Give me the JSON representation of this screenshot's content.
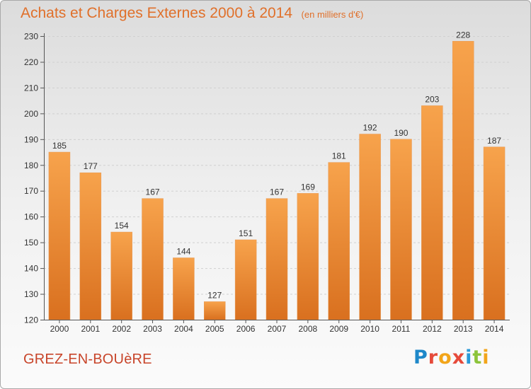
{
  "header": {
    "title": "Achats et Charges Externes 2000 à 2014",
    "unit": "(en milliers d'€)"
  },
  "footer": {
    "commune": "GREZ-EN-BOUèRE",
    "logo": "Proxiti"
  },
  "colors": {
    "bar_light": "#f7a34c",
    "bar_dark": "#d9701f",
    "title": "#e0702a",
    "commune": "#c8452a",
    "logo": [
      "#1e88c9",
      "#e64a3a",
      "#f2a51a",
      "#e64a3a",
      "#2a9ad8",
      "#8cc43b",
      "#f2a51a"
    ]
  },
  "chart_data": {
    "type": "bar",
    "title": "Achats et Charges Externes 2000 à 2014",
    "categories": [
      "2000",
      "2001",
      "2002",
      "2003",
      "2004",
      "2005",
      "2006",
      "2007",
      "2008",
      "2009",
      "2010",
      "2011",
      "2012",
      "2013",
      "2014"
    ],
    "values": [
      185,
      177,
      154,
      167,
      144,
      127,
      151,
      167,
      169,
      181,
      192,
      190,
      203,
      228,
      187
    ],
    "yticks": [
      120,
      130,
      140,
      150,
      160,
      170,
      180,
      190,
      200,
      210,
      220,
      230
    ],
    "ylim": [
      120,
      230
    ],
    "grid": true,
    "legend": "none"
  }
}
